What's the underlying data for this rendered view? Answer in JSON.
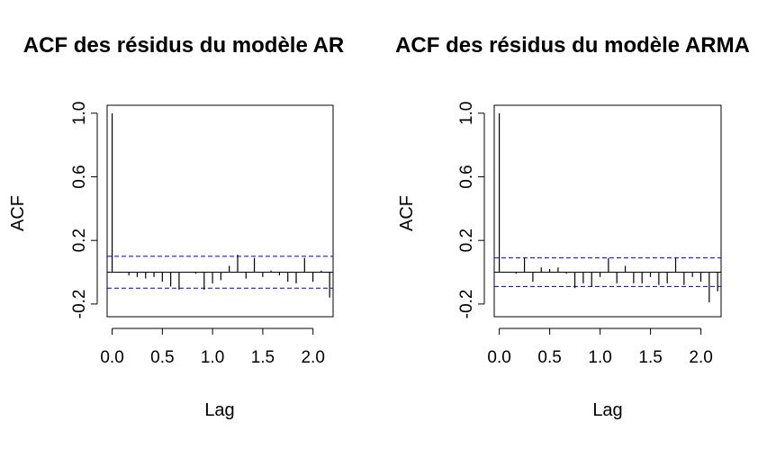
{
  "chart_data": [
    {
      "type": "bar",
      "title": "ACF des résidus du modèle AR",
      "xlabel": "Lag",
      "ylabel": "ACF",
      "xlim": [
        -0.05,
        2.2
      ],
      "ylim": [
        -0.28,
        1.05
      ],
      "x_ticks": [
        "0.0",
        "0.5",
        "1.0",
        "1.5",
        "2.0"
      ],
      "y_ticks": [
        "-0.2",
        "0.2",
        "0.6",
        "1.0"
      ],
      "confidence_bound": 0.1,
      "lag_step": 0.0833,
      "values": [
        1.0,
        0.0,
        -0.02,
        -0.03,
        -0.04,
        -0.03,
        -0.06,
        -0.09,
        -0.11,
        0.0,
        -0.01,
        -0.11,
        -0.07,
        -0.05,
        0.04,
        0.11,
        -0.04,
        0.09,
        -0.03,
        0.01,
        -0.02,
        -0.06,
        -0.07,
        0.09,
        -0.06,
        0.01,
        -0.16
      ],
      "colors": {
        "bars": "#000000",
        "zero_line": "#000000",
        "bounds": "#0000cc"
      }
    },
    {
      "type": "bar",
      "title": "ACF des résidus du modèle ARMA",
      "xlabel": "Lag",
      "ylabel": "ACF",
      "xlim": [
        -0.05,
        2.2
      ],
      "ylim": [
        -0.28,
        1.05
      ],
      "x_ticks": [
        "0.0",
        "0.5",
        "1.0",
        "1.5",
        "2.0"
      ],
      "y_ticks": [
        "-0.2",
        "0.2",
        "0.6",
        "1.0"
      ],
      "confidence_bound": 0.09,
      "lag_step": 0.0833,
      "values": [
        1.0,
        0.0,
        -0.01,
        0.09,
        -0.06,
        0.03,
        0.02,
        0.03,
        -0.01,
        -0.1,
        -0.07,
        -0.09,
        -0.03,
        0.09,
        -0.07,
        0.04,
        -0.07,
        -0.07,
        -0.03,
        -0.08,
        -0.07,
        0.09,
        -0.08,
        -0.03,
        -0.06,
        -0.19,
        -0.12
      ],
      "colors": {
        "bars": "#000000",
        "zero_line": "#000000",
        "bounds": "#0000cc"
      }
    }
  ]
}
